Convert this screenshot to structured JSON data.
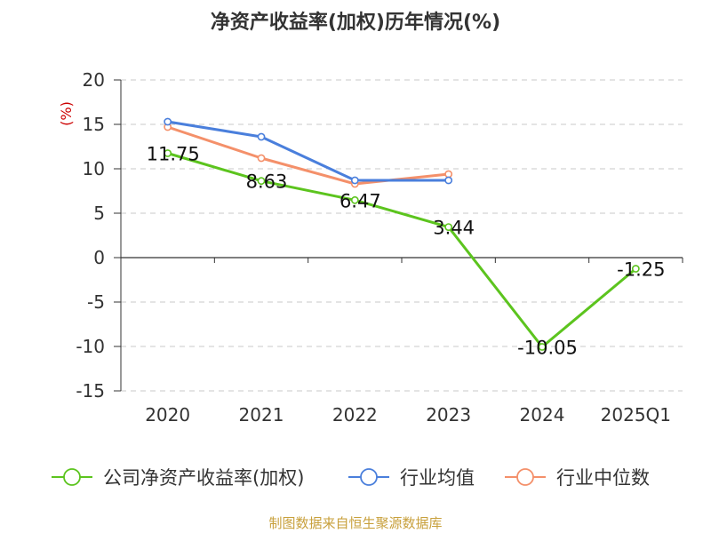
{
  "chart_data": {
    "type": "line",
    "title": "净资产收益率(加权)历年情况(%)",
    "ylabel": "(%)",
    "xlabel": "",
    "categories": [
      "2020",
      "2021",
      "2022",
      "2023",
      "2024",
      "2025Q1"
    ],
    "ylim": [
      -15,
      20
    ],
    "yticks": [
      20,
      15,
      10,
      5,
      0,
      -5,
      -10,
      -15
    ],
    "grid": true,
    "legend_position": "bottom",
    "series": [
      {
        "name": "公司净资产收益率(加权)",
        "color": "#5cc41e",
        "values": [
          11.75,
          8.63,
          6.47,
          3.44,
          -10.05,
          -1.25
        ],
        "labels": [
          "11.75",
          "8.63",
          "6.47",
          "3.44",
          "-10.05",
          "-1.25"
        ]
      },
      {
        "name": "行业均值",
        "color": "#4a7fdc",
        "values": [
          15.3,
          13.6,
          8.7,
          8.7,
          null,
          null
        ]
      },
      {
        "name": "行业中位数",
        "color": "#f4906a",
        "values": [
          14.7,
          11.2,
          8.3,
          9.4,
          null,
          null
        ]
      }
    ],
    "source": "制图数据来自恒生聚源数据库"
  }
}
